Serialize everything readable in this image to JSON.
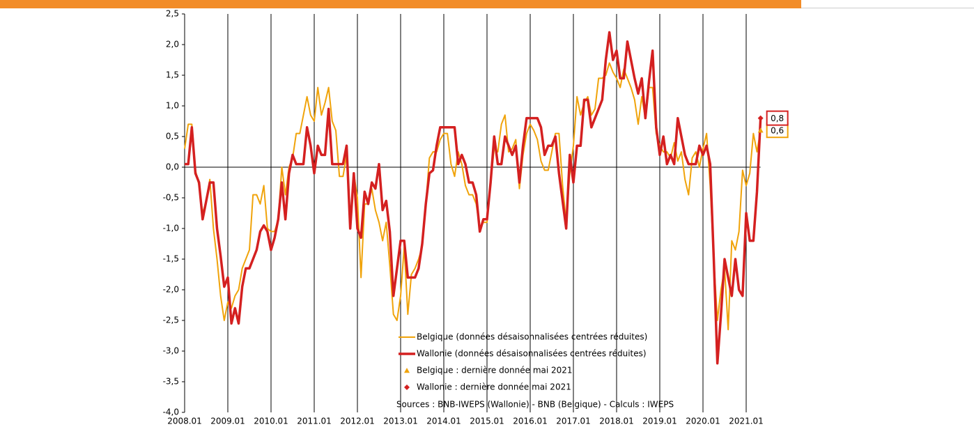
{
  "chart_data": {
    "type": "line",
    "categories": [
      "2008.01",
      null,
      null,
      null,
      null,
      null,
      null,
      null,
      null,
      null,
      null,
      null,
      "2009.01",
      null,
      null,
      null,
      null,
      null,
      null,
      null,
      null,
      null,
      null,
      null,
      "2010.01",
      null,
      null,
      null,
      null,
      null,
      null,
      null,
      null,
      null,
      null,
      null,
      "2011.01",
      null,
      null,
      null,
      null,
      null,
      null,
      null,
      null,
      null,
      null,
      null,
      "2012.01",
      null,
      null,
      null,
      null,
      null,
      null,
      null,
      null,
      null,
      null,
      null,
      "2013.01",
      null,
      null,
      null,
      null,
      null,
      null,
      null,
      null,
      null,
      null,
      null,
      "2014.01",
      null,
      null,
      null,
      null,
      null,
      null,
      null,
      null,
      null,
      null,
      null,
      "2015.01",
      null,
      null,
      null,
      null,
      null,
      null,
      null,
      null,
      null,
      null,
      null,
      "2016.01",
      null,
      null,
      null,
      null,
      null,
      null,
      null,
      null,
      null,
      null,
      null,
      "2017.01",
      null,
      null,
      null,
      null,
      null,
      null,
      null,
      null,
      null,
      null,
      null,
      "2018.01",
      null,
      null,
      null,
      null,
      null,
      null,
      null,
      null,
      null,
      null,
      null,
      "2019.01",
      null,
      null,
      null,
      null,
      null,
      null,
      null,
      null,
      null,
      null,
      null,
      "2020.01",
      null,
      null,
      null,
      null,
      null,
      null,
      null,
      null,
      null,
      null,
      null,
      "2021.01",
      null,
      null,
      null,
      null
    ],
    "series": [
      {
        "name": "Belgique (données désaisonnalisées centrées réduites)",
        "color": "#f0a30a",
        "width": 2,
        "values": [
          0.3,
          0.7,
          0.7,
          -0.05,
          -0.3,
          -0.75,
          -0.55,
          -0.2,
          -1.0,
          -1.5,
          -2.1,
          -2.5,
          -2.2,
          -2.3,
          -2.1,
          -2.0,
          -1.65,
          -1.5,
          -1.35,
          -0.45,
          -0.45,
          -0.6,
          -0.3,
          -1.0,
          -1.05,
          -1.05,
          -0.85,
          0.0,
          -0.45,
          0.0,
          0.15,
          0.55,
          0.55,
          0.85,
          1.15,
          0.85,
          0.75,
          1.3,
          0.85,
          1.05,
          1.3,
          0.75,
          0.6,
          -0.15,
          -0.15,
          0.2,
          -1.0,
          -0.1,
          -0.5,
          -1.8,
          -0.6,
          -0.6,
          -0.35,
          -0.7,
          -0.9,
          -1.2,
          -0.9,
          -1.6,
          -2.4,
          -2.5,
          -2.1,
          -1.3,
          -2.4,
          -1.75,
          -1.65,
          -1.5,
          -1.3,
          -0.6,
          0.15,
          0.25,
          0.25,
          0.45,
          0.55,
          0.55,
          0.05,
          -0.15,
          0.25,
          0.05,
          -0.3,
          -0.45,
          -0.45,
          -0.6,
          -1.0,
          -0.9,
          -0.9,
          -0.25,
          0.3,
          0.25,
          0.7,
          0.85,
          0.25,
          0.3,
          0.45,
          -0.35,
          0.2,
          0.55,
          0.7,
          0.6,
          0.45,
          0.1,
          -0.05,
          -0.05,
          0.25,
          0.55,
          0.55,
          -0.3,
          -0.9,
          -0.1,
          0.35,
          1.15,
          0.85,
          1.05,
          1.15,
          0.85,
          0.95,
          1.45,
          1.45,
          1.5,
          1.7,
          1.55,
          1.45,
          1.3,
          1.6,
          1.45,
          1.3,
          1.1,
          0.7,
          1.15,
          0.8,
          1.3,
          1.3,
          0.55,
          0.35,
          0.25,
          0.25,
          0.15,
          0.4,
          0.1,
          0.25,
          -0.2,
          -0.45,
          0.15,
          0.25,
          0.0,
          0.3,
          0.55,
          -0.3,
          -1.5,
          -2.5,
          -2.0,
          -1.65,
          -2.65,
          -1.2,
          -1.35,
          -1.05,
          -0.05,
          -0.3,
          -0.1,
          0.55,
          0.25,
          0.6
        ]
      },
      {
        "name": "Wallonie (données désaisonnalisées centrées réduites)",
        "color": "#d42020",
        "width": 3.5,
        "values": [
          0.05,
          0.05,
          0.65,
          -0.1,
          -0.25,
          -0.85,
          -0.55,
          -0.25,
          -0.25,
          -1.0,
          -1.45,
          -1.95,
          -1.8,
          -2.55,
          -2.3,
          -2.55,
          -1.95,
          -1.65,
          -1.65,
          -1.5,
          -1.35,
          -1.05,
          -0.95,
          -1.05,
          -1.35,
          -1.15,
          -0.85,
          -0.25,
          -0.85,
          -0.1,
          0.2,
          0.05,
          0.05,
          0.05,
          0.65,
          0.35,
          -0.1,
          0.35,
          0.2,
          0.2,
          0.95,
          0.05,
          0.05,
          0.05,
          0.05,
          0.35,
          -1.0,
          -0.1,
          -1.0,
          -1.15,
          -0.4,
          -0.6,
          -0.25,
          -0.35,
          0.05,
          -0.7,
          -0.55,
          -1.05,
          -2.1,
          -1.65,
          -1.2,
          -1.2,
          -1.8,
          -1.8,
          -1.8,
          -1.65,
          -1.25,
          -0.6,
          -0.1,
          -0.05,
          0.35,
          0.65,
          0.65,
          0.65,
          0.65,
          0.65,
          0.05,
          0.2,
          0.05,
          -0.25,
          -0.25,
          -0.45,
          -1.05,
          -0.85,
          -0.85,
          -0.25,
          0.5,
          0.05,
          0.05,
          0.5,
          0.35,
          0.2,
          0.35,
          -0.25,
          0.35,
          0.8,
          0.8,
          0.8,
          0.8,
          0.65,
          0.2,
          0.35,
          0.35,
          0.5,
          -0.1,
          -0.55,
          -1.0,
          0.2,
          -0.25,
          0.35,
          0.35,
          1.1,
          1.1,
          0.65,
          0.8,
          0.95,
          1.1,
          1.75,
          2.2,
          1.75,
          1.9,
          1.45,
          1.45,
          2.05,
          1.75,
          1.45,
          1.2,
          1.45,
          0.8,
          1.4,
          1.9,
          0.65,
          0.2,
          0.5,
          0.05,
          0.2,
          0.05,
          0.8,
          0.5,
          0.2,
          0.05,
          0.05,
          0.05,
          0.35,
          0.2,
          0.35,
          0.05,
          -1.5,
          -3.2,
          -2.4,
          -1.5,
          -1.8,
          -2.1,
          -1.5,
          -2.0,
          -2.1,
          -0.75,
          -1.2,
          -1.2,
          -0.4,
          0.8
        ]
      }
    ],
    "markers": [
      {
        "name": "Belgique : dernière donnée mai 2021",
        "color": "#f0a30a",
        "shape": "triangle",
        "value": 0.6,
        "value_label": "0,6"
      },
      {
        "name": "Wallonie : dernière donnée mai 2021",
        "color": "#d42020",
        "shape": "diamond",
        "value": 0.8,
        "value_label": "0,8"
      }
    ],
    "ylim": [
      -4,
      2.5
    ],
    "yticks": [
      {
        "value": -4,
        "label": "-4,0"
      },
      {
        "value": -3.5,
        "label": "-3,5"
      },
      {
        "value": -3,
        "label": "-3,0"
      },
      {
        "value": -2.5,
        "label": "-2,5"
      },
      {
        "value": -2,
        "label": "-2,0"
      },
      {
        "value": -1.5,
        "label": "-1,5"
      },
      {
        "value": -1,
        "label": "-1,0"
      },
      {
        "value": -0.5,
        "label": "-0,5"
      },
      {
        "value": 0,
        "label": "0,0"
      },
      {
        "value": 0.5,
        "label": "0,5"
      },
      {
        "value": 1,
        "label": "1,0"
      },
      {
        "value": 1.5,
        "label": "1,5"
      },
      {
        "value": 2,
        "label": "2,0"
      },
      {
        "value": 2.5,
        "label": "2,5"
      }
    ],
    "vertical_grid": true,
    "source": "Sources : BNB-IWEPS (Wallonie) - BNB (Belgique) - Calculs : IWEPS"
  }
}
